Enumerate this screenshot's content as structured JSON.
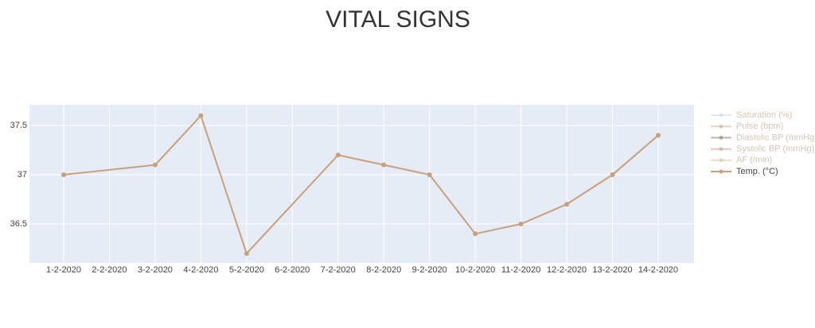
{
  "chart_data": {
    "type": "line",
    "title": "VITAL SIGNS",
    "xticks": [
      "1-2-2020",
      "2-2-2020",
      "3-2-2020",
      "4-2-2020",
      "5-2-2020",
      "6-2-2020",
      "7-2-2020",
      "8-2-2020",
      "9-2-2020",
      "10-2-2020",
      "11-2-2020",
      "12-2-2020",
      "13-2-2020",
      "14-2-2020"
    ],
    "x": [
      "1-2-2020",
      "3-2-2020",
      "4-2-2020",
      "5-2-2020",
      "7-2-2020",
      "8-2-2020",
      "9-2-2020",
      "10-2-2020",
      "11-2-2020",
      "12-2-2020",
      "13-2-2020",
      "14-2-2020"
    ],
    "series": [
      {
        "name": "Saturation (%)",
        "color": "#c8d3ea",
        "visible": "legendonly"
      },
      {
        "name": "Pulse (bpm)",
        "color": "#d4a57c",
        "visible": "legendonly"
      },
      {
        "name": "Diastolic BP (mmHg)",
        "color": "#8c7060",
        "visible": "legendonly"
      },
      {
        "name": "Systolic BP (mmHg)",
        "color": "#c48f86",
        "visible": "legendonly"
      },
      {
        "name": "AF (/min)",
        "color": "#e0b896",
        "visible": "legendonly"
      },
      {
        "name": "Temp. (°C)",
        "color": "#c9a07c",
        "values": [
          37,
          37.1,
          37.6,
          36.2,
          37.2,
          37.1,
          37,
          36.4,
          36.5,
          36.7,
          37,
          37.4
        ]
      }
    ],
    "ylim": [
      36.105,
      37.71
    ],
    "yticks": [
      36.5,
      37,
      37.5
    ],
    "grid": true,
    "legend": "right"
  }
}
